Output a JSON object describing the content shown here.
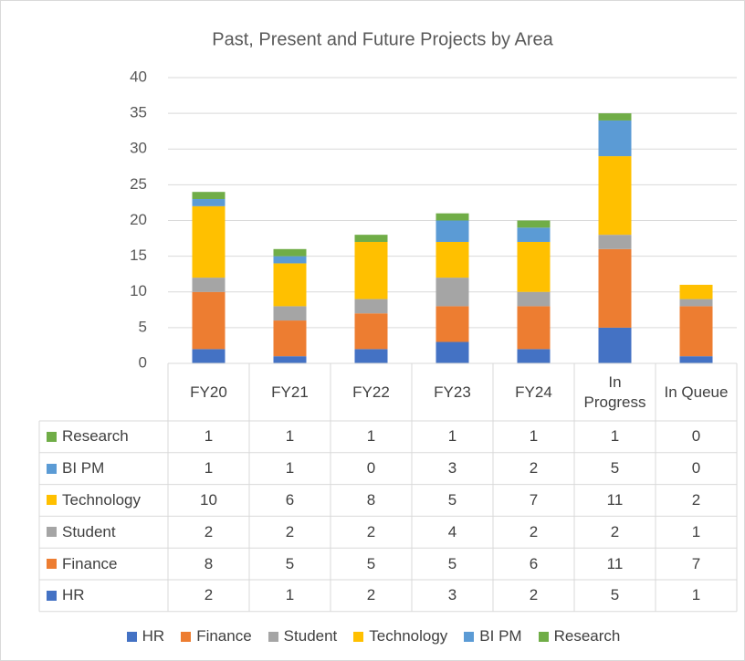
{
  "chart_data": {
    "type": "bar",
    "stacked": true,
    "title": "Past, Present and Future Projects by Area",
    "categories": [
      "FY20",
      "FY21",
      "FY22",
      "FY23",
      "FY24",
      "In Progress",
      "In Queue"
    ],
    "series": [
      {
        "name": "HR",
        "color": "#4472c4",
        "values": [
          2,
          1,
          2,
          3,
          2,
          5,
          1
        ]
      },
      {
        "name": "Finance",
        "color": "#ed7d31",
        "values": [
          8,
          5,
          5,
          5,
          6,
          11,
          7
        ]
      },
      {
        "name": "Student",
        "color": "#a5a5a5",
        "values": [
          2,
          2,
          2,
          4,
          2,
          2,
          1
        ]
      },
      {
        "name": "Technology",
        "color": "#ffc000",
        "values": [
          10,
          6,
          8,
          5,
          7,
          11,
          2
        ]
      },
      {
        "name": "BI PM",
        "color": "#5b9bd5",
        "values": [
          1,
          1,
          0,
          3,
          2,
          5,
          0
        ]
      },
      {
        "name": "Research",
        "color": "#70ad47",
        "values": [
          1,
          1,
          1,
          1,
          1,
          1,
          0
        ]
      }
    ],
    "ylim": [
      0,
      40
    ],
    "yticks": [
      0,
      5,
      10,
      15,
      20,
      25,
      30,
      35,
      40
    ],
    "grid": true,
    "legend": "bottom",
    "data_table": true
  }
}
